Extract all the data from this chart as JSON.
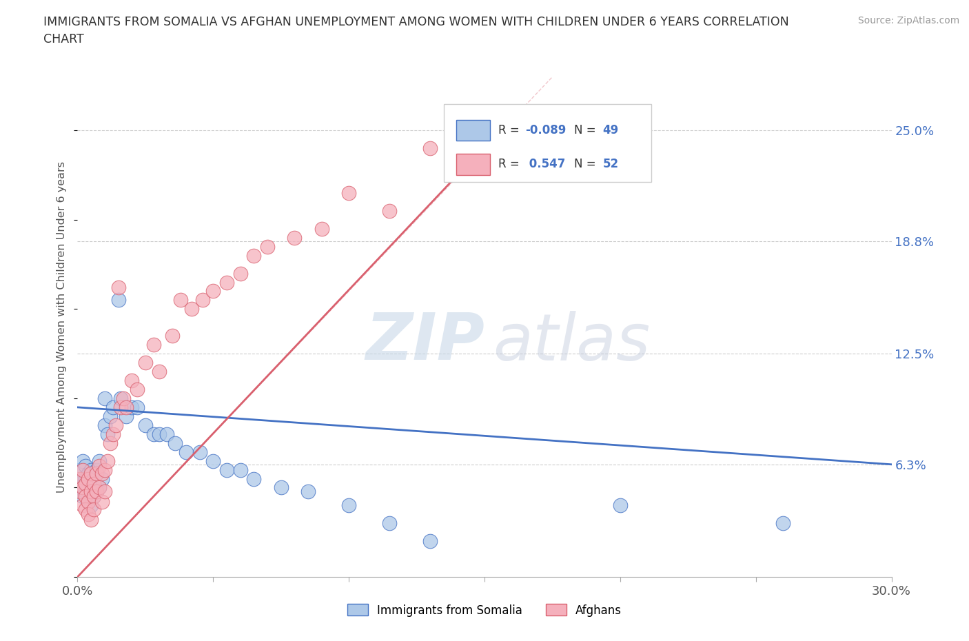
{
  "title": "IMMIGRANTS FROM SOMALIA VS AFGHAN UNEMPLOYMENT AMONG WOMEN WITH CHILDREN UNDER 6 YEARS CORRELATION\nCHART",
  "source": "Source: ZipAtlas.com",
  "ylabel": "Unemployment Among Women with Children Under 6 years",
  "xlim": [
    0.0,
    0.3
  ],
  "ylim": [
    0.0,
    0.28
  ],
  "ytick_labels_right": [
    "6.3%",
    "12.5%",
    "18.8%",
    "25.0%"
  ],
  "ytick_positions_right": [
    0.063,
    0.125,
    0.188,
    0.25
  ],
  "R_somalia": -0.089,
  "N_somalia": 49,
  "R_afghan": 0.547,
  "N_afghan": 52,
  "somalia_color": "#adc8e8",
  "afghan_color": "#f5b0bc",
  "somalia_line_color": "#4472c4",
  "afghan_line_color": "#d9606e",
  "somalia_scatter_x": [
    0.001,
    0.001,
    0.002,
    0.002,
    0.002,
    0.003,
    0.003,
    0.003,
    0.004,
    0.004,
    0.004,
    0.005,
    0.005,
    0.005,
    0.006,
    0.006,
    0.007,
    0.007,
    0.008,
    0.008,
    0.009,
    0.01,
    0.01,
    0.011,
    0.012,
    0.013,
    0.015,
    0.016,
    0.018,
    0.02,
    0.022,
    0.025,
    0.028,
    0.03,
    0.033,
    0.036,
    0.04,
    0.045,
    0.05,
    0.055,
    0.06,
    0.065,
    0.075,
    0.085,
    0.1,
    0.115,
    0.13,
    0.2,
    0.26
  ],
  "somalia_scatter_y": [
    0.06,
    0.05,
    0.055,
    0.065,
    0.045,
    0.062,
    0.055,
    0.048,
    0.058,
    0.05,
    0.042,
    0.06,
    0.052,
    0.04,
    0.055,
    0.045,
    0.06,
    0.048,
    0.065,
    0.05,
    0.055,
    0.1,
    0.085,
    0.08,
    0.09,
    0.095,
    0.155,
    0.1,
    0.09,
    0.095,
    0.095,
    0.085,
    0.08,
    0.08,
    0.08,
    0.075,
    0.07,
    0.07,
    0.065,
    0.06,
    0.06,
    0.055,
    0.05,
    0.048,
    0.04,
    0.03,
    0.02,
    0.04,
    0.03
  ],
  "afghan_scatter_x": [
    0.001,
    0.001,
    0.002,
    0.002,
    0.002,
    0.003,
    0.003,
    0.003,
    0.004,
    0.004,
    0.004,
    0.005,
    0.005,
    0.005,
    0.006,
    0.006,
    0.006,
    0.007,
    0.007,
    0.008,
    0.008,
    0.009,
    0.009,
    0.01,
    0.01,
    0.011,
    0.012,
    0.013,
    0.014,
    0.015,
    0.016,
    0.017,
    0.018,
    0.02,
    0.022,
    0.025,
    0.028,
    0.03,
    0.035,
    0.038,
    0.042,
    0.046,
    0.05,
    0.055,
    0.06,
    0.065,
    0.07,
    0.08,
    0.09,
    0.1,
    0.115,
    0.13
  ],
  "afghan_scatter_y": [
    0.055,
    0.048,
    0.05,
    0.06,
    0.04,
    0.052,
    0.045,
    0.038,
    0.055,
    0.042,
    0.035,
    0.058,
    0.048,
    0.032,
    0.052,
    0.045,
    0.038,
    0.058,
    0.048,
    0.062,
    0.05,
    0.058,
    0.042,
    0.06,
    0.048,
    0.065,
    0.075,
    0.08,
    0.085,
    0.162,
    0.095,
    0.1,
    0.095,
    0.11,
    0.105,
    0.12,
    0.13,
    0.115,
    0.135,
    0.155,
    0.15,
    0.155,
    0.16,
    0.165,
    0.17,
    0.18,
    0.185,
    0.19,
    0.195,
    0.215,
    0.205,
    0.24
  ],
  "somalia_line_x": [
    0.0,
    0.3
  ],
  "somalia_line_y": [
    0.095,
    0.063
  ],
  "afghan_line_x": [
    0.0,
    0.14
  ],
  "afghan_line_y": [
    0.0,
    0.225
  ]
}
